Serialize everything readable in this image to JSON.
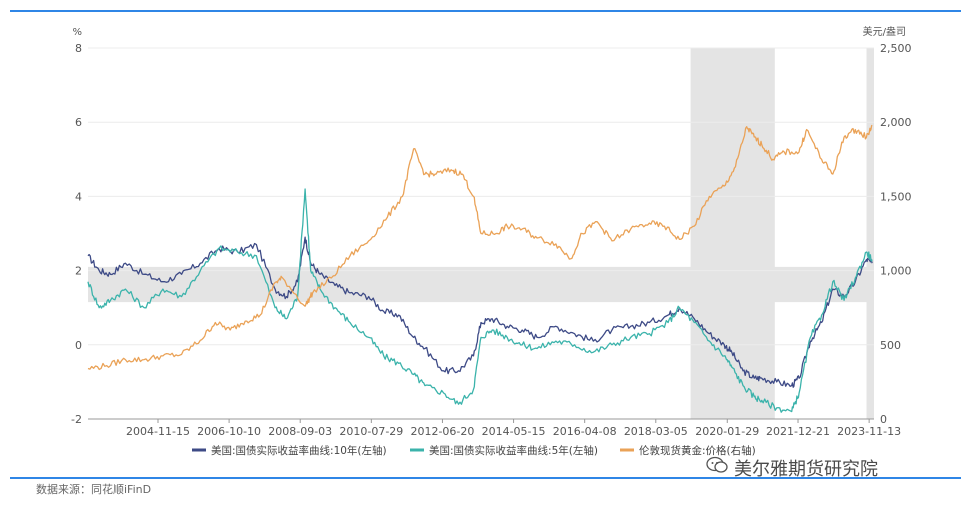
{
  "chart_data": {
    "type": "line",
    "left_axis": {
      "unit": "%",
      "min": -2,
      "max": 8,
      "ticks": [
        -2,
        0,
        2,
        4,
        6,
        8
      ]
    },
    "right_axis": {
      "unit": "美元/盎司",
      "min": 0,
      "max": 2500,
      "ticks": [
        0,
        500,
        1000,
        1500,
        2000,
        2500
      ]
    },
    "x_tick_labels": [
      "2004-11-15",
      "2006-10-10",
      "2008-09-03",
      "2010-07-29",
      "2012-06-20",
      "2014-05-15",
      "2016-04-08",
      "2018-03-05",
      "2020-01-29",
      "2021-12-21",
      "2023-11-13"
    ],
    "x_tick_dates": [
      2004.87,
      2006.77,
      2008.67,
      2010.57,
      2012.47,
      2014.37,
      2016.27,
      2018.17,
      2020.08,
      2021.97,
      2023.87
    ],
    "x_range": [
      2003.0,
      2024.0
    ],
    "highlight_bands": [
      {
        "axis": "x",
        "from": 2019.1,
        "to": 2021.35
      },
      {
        "axis": "x",
        "from": 2023.8,
        "to": 2024.0
      },
      {
        "axis": "y_left",
        "from": 1.15,
        "to": 2.1
      }
    ],
    "series": [
      {
        "name": "美国:国债实际收益率曲线:10年(左轴)",
        "axis": "left",
        "color": "#3d4a86",
        "x": [
          2003.0,
          2003.3,
          2003.6,
          2004.0,
          2004.5,
          2005.0,
          2005.5,
          2006.0,
          2006.5,
          2007.0,
          2007.5,
          2008.0,
          2008.3,
          2008.6,
          2008.8,
          2008.95,
          2009.2,
          2009.6,
          2010.0,
          2010.5,
          2010.9,
          2011.3,
          2011.7,
          2012.0,
          2012.5,
          2012.9,
          2013.3,
          2013.5,
          2013.8,
          2014.2,
          2014.6,
          2015.0,
          2015.5,
          2016.0,
          2016.5,
          2017.0,
          2017.5,
          2018.0,
          2018.5,
          2018.8,
          2019.2,
          2019.6,
          2020.0,
          2020.2,
          2020.5,
          2020.8,
          2021.0,
          2021.4,
          2021.8,
          2022.0,
          2022.3,
          2022.6,
          2022.9,
          2023.2,
          2023.5,
          2023.8,
          2023.95
        ],
        "y": [
          2.4,
          2.0,
          1.9,
          2.2,
          1.9,
          1.7,
          1.9,
          2.2,
          2.6,
          2.5,
          2.7,
          1.5,
          1.3,
          1.7,
          2.9,
          2.2,
          1.9,
          1.6,
          1.4,
          1.3,
          0.9,
          0.8,
          0.2,
          -0.1,
          -0.7,
          -0.7,
          -0.3,
          0.6,
          0.7,
          0.5,
          0.4,
          0.2,
          0.5,
          0.3,
          0.1,
          0.4,
          0.5,
          0.6,
          0.8,
          1.0,
          0.7,
          0.3,
          0.0,
          -0.2,
          -0.7,
          -0.9,
          -0.9,
          -1.0,
          -1.1,
          -0.9,
          0.1,
          0.6,
          1.5,
          1.3,
          1.7,
          2.3,
          2.2
        ]
      },
      {
        "name": "美国:国债实际收益率曲线:5年(左轴)",
        "axis": "left",
        "color": "#3bb3ab",
        "x": [
          2003.0,
          2003.3,
          2003.6,
          2004.0,
          2004.5,
          2005.0,
          2005.5,
          2006.0,
          2006.5,
          2007.0,
          2007.5,
          2008.0,
          2008.3,
          2008.6,
          2008.8,
          2008.95,
          2009.2,
          2009.6,
          2010.0,
          2010.5,
          2010.9,
          2011.3,
          2011.7,
          2012.0,
          2012.5,
          2012.9,
          2013.3,
          2013.5,
          2013.8,
          2014.2,
          2014.6,
          2015.0,
          2015.5,
          2016.0,
          2016.5,
          2017.0,
          2017.5,
          2018.0,
          2018.5,
          2018.8,
          2019.2,
          2019.6,
          2020.0,
          2020.2,
          2020.5,
          2020.8,
          2021.0,
          2021.4,
          2021.8,
          2022.0,
          2022.3,
          2022.6,
          2022.9,
          2023.2,
          2023.5,
          2023.8,
          2023.95
        ],
        "y": [
          1.7,
          1.0,
          1.2,
          1.5,
          1.0,
          1.5,
          1.3,
          2.0,
          2.6,
          2.5,
          2.4,
          1.0,
          0.7,
          1.3,
          4.2,
          2.0,
          1.5,
          1.0,
          0.6,
          0.2,
          -0.3,
          -0.5,
          -0.8,
          -1.1,
          -1.3,
          -1.6,
          -1.2,
          0.2,
          0.4,
          0.2,
          0.0,
          -0.1,
          0.1,
          0.0,
          -0.2,
          0.0,
          0.2,
          0.3,
          0.6,
          1.0,
          0.6,
          0.1,
          -0.3,
          -0.6,
          -1.1,
          -1.4,
          -1.5,
          -1.7,
          -1.8,
          -1.3,
          0.2,
          0.8,
          1.7,
          1.2,
          1.8,
          2.5,
          2.3
        ]
      },
      {
        "name": "伦敦现货黄金:价格(右轴)",
        "axis": "right",
        "color": "#eaa257",
        "x": [
          2003.0,
          2003.5,
          2004.0,
          2004.5,
          2005.0,
          2005.5,
          2006.0,
          2006.4,
          2006.8,
          2007.2,
          2007.6,
          2008.0,
          2008.2,
          2008.8,
          2009.0,
          2009.5,
          2010.0,
          2010.5,
          2011.0,
          2011.4,
          2011.7,
          2012.0,
          2012.3,
          2012.7,
          2013.0,
          2013.3,
          2013.5,
          2013.9,
          2014.2,
          2014.6,
          2015.0,
          2015.5,
          2015.9,
          2016.2,
          2016.6,
          2017.0,
          2017.5,
          2018.0,
          2018.4,
          2018.8,
          2019.2,
          2019.6,
          2020.0,
          2020.3,
          2020.6,
          2020.8,
          2021.0,
          2021.3,
          2021.6,
          2022.0,
          2022.2,
          2022.6,
          2022.9,
          2023.2,
          2023.5,
          2023.8,
          2023.95
        ],
        "y": [
          340,
          360,
          400,
          400,
          425,
          435,
          530,
          650,
          600,
          660,
          700,
          920,
          950,
          760,
          850,
          950,
          1100,
          1200,
          1360,
          1500,
          1820,
          1650,
          1650,
          1680,
          1650,
          1500,
          1250,
          1250,
          1300,
          1280,
          1220,
          1180,
          1080,
          1250,
          1330,
          1200,
          1280,
          1320,
          1300,
          1210,
          1300,
          1500,
          1570,
          1700,
          1970,
          1900,
          1850,
          1750,
          1800,
          1800,
          1950,
          1750,
          1650,
          1900,
          1950,
          1900,
          1980
        ]
      }
    ],
    "legend": [
      {
        "label": "美国:国债实际收益率曲线:10年(左轴)",
        "color": "#3d4a86"
      },
      {
        "label": "美国:国债实际收益率曲线:5年(左轴)",
        "color": "#3bb3ab"
      },
      {
        "label": "伦敦现货黄金:价格(右轴)",
        "color": "#eaa257"
      }
    ],
    "legend_position": "bottom"
  },
  "source": "数据来源：同花顺iFinD",
  "watermark": "美尔雅期货研究院"
}
